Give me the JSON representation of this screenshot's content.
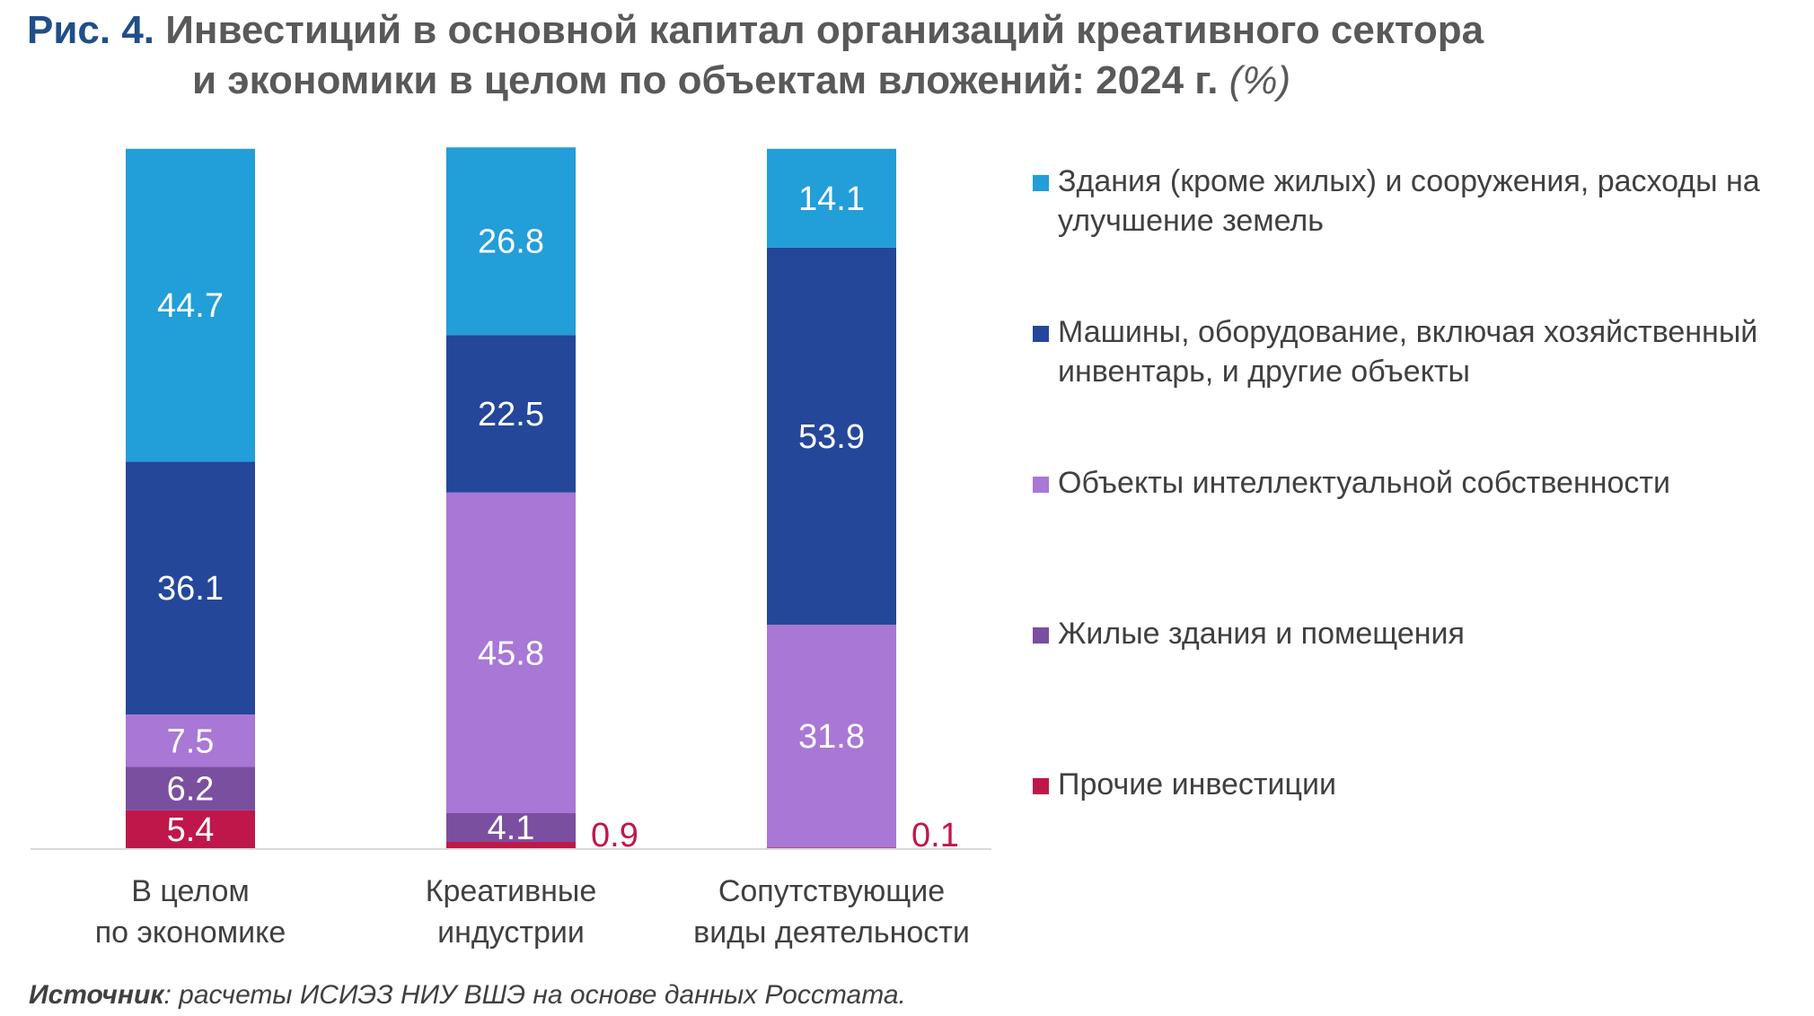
{
  "title": {
    "fig_label": "Рис. 4.",
    "line1": "Инвестиций в основной капитал организаций креативного сектора",
    "line2": "и экономики в целом по объектам вложений: 2024 г.",
    "unit": "(%)"
  },
  "chart_data": {
    "type": "bar",
    "stacked": true,
    "categories": [
      "В целом\nпо экономике",
      "Креативные\nиндустрии",
      "Сопутствующие\nвиды деятельности"
    ],
    "series": [
      {
        "name": "Прочие инвестиции",
        "color": "#c0174a",
        "values": [
          5.4,
          0.9,
          0.1
        ]
      },
      {
        "name": "Жилые здания и помещения",
        "color": "#7b4fa0",
        "values": [
          6.2,
          4.1,
          0
        ]
      },
      {
        "name": "Объекты интеллектуальной собственности",
        "color": "#a977d6",
        "values": [
          7.5,
          45.8,
          31.8
        ]
      },
      {
        "name": "Машины, оборудование, включая хозяйственный инвентарь, и другие объекты",
        "color": "#24479a",
        "values": [
          36.1,
          22.5,
          53.9
        ]
      },
      {
        "name": "Здания (кроме жилых) и сооружения, расходы на улучшение земель",
        "color": "#229ed9",
        "values": [
          44.7,
          26.8,
          14.1
        ]
      }
    ],
    "ylim": [
      0,
      100
    ],
    "legend_position": "right"
  },
  "legend": [
    {
      "label": "Здания (кроме жилых) и сооружения, расходы на улучшение земель",
      "color": "#229ed9"
    },
    {
      "label": "Машины, оборудование, включая хозяйственный инвентарь, и другие объекты",
      "color": "#24479a"
    },
    {
      "label": "Объекты интеллектуальной собственности",
      "color": "#a977d6"
    },
    {
      "label": "Жилые здания и помещения",
      "color": "#7b4fa0"
    },
    {
      "label": "Прочие инвестиции",
      "color": "#c0174a"
    }
  ],
  "source": {
    "label": "Источник",
    "text": ": расчеты ИСИЭЗ НИУ ВШЭ на основе данных Росстата."
  }
}
